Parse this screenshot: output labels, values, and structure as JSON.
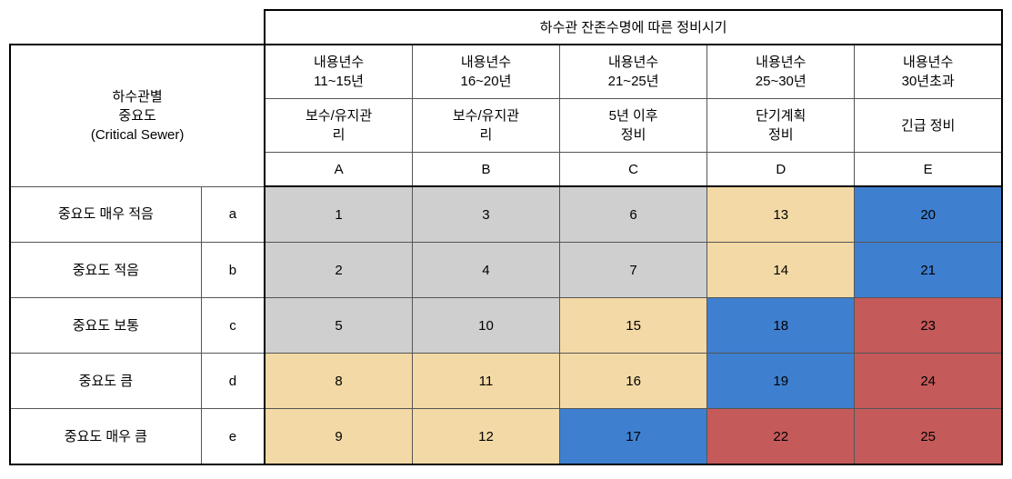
{
  "topHeader": "하수관 잔존수명에 따른 정비시기",
  "rowHeader": {
    "line1": "하수관별",
    "line2": "중요도",
    "line3": "(Critical Sewer)"
  },
  "columns": [
    {
      "range": "내용년수\n11~15년",
      "action": "보수/유지관\n리",
      "code": "A"
    },
    {
      "range": "내용년수\n16~20년",
      "action": "보수/유지관\n리",
      "code": "B"
    },
    {
      "range": "내용년수\n21~25년",
      "action": "5년 이후\n정비",
      "code": "C"
    },
    {
      "range": "내용년수\n25~30년",
      "action": "단기계획\n정비",
      "code": "D"
    },
    {
      "range": "내용년수\n30년초과",
      "action": "긴급 정비",
      "code": "E"
    }
  ],
  "rows": [
    {
      "label": "중요도 매우 적음",
      "code": "a",
      "cells": [
        {
          "v": "1",
          "bg": "#cfcfcf"
        },
        {
          "v": "3",
          "bg": "#cfcfcf"
        },
        {
          "v": "6",
          "bg": "#cfcfcf"
        },
        {
          "v": "13",
          "bg": "#f3d9a5"
        },
        {
          "v": "20",
          "bg": "#3f7fcf"
        }
      ]
    },
    {
      "label": "중요도 적음",
      "code": "b",
      "cells": [
        {
          "v": "2",
          "bg": "#cfcfcf"
        },
        {
          "v": "4",
          "bg": "#cfcfcf"
        },
        {
          "v": "7",
          "bg": "#cfcfcf"
        },
        {
          "v": "14",
          "bg": "#f3d9a5"
        },
        {
          "v": "21",
          "bg": "#3f7fcf"
        }
      ]
    },
    {
      "label": "중요도 보통",
      "code": "c",
      "cells": [
        {
          "v": "5",
          "bg": "#cfcfcf"
        },
        {
          "v": "10",
          "bg": "#cfcfcf"
        },
        {
          "v": "15",
          "bg": "#f3d9a5"
        },
        {
          "v": "18",
          "bg": "#3f7fcf"
        },
        {
          "v": "23",
          "bg": "#c55a5a"
        }
      ]
    },
    {
      "label": "중요도 큼",
      "code": "d",
      "cells": [
        {
          "v": "8",
          "bg": "#f3d9a5"
        },
        {
          "v": "11",
          "bg": "#f3d9a5"
        },
        {
          "v": "16",
          "bg": "#f3d9a5"
        },
        {
          "v": "19",
          "bg": "#3f7fcf"
        },
        {
          "v": "24",
          "bg": "#c55a5a"
        }
      ]
    },
    {
      "label": "중요도 매우 큼",
      "code": "e",
      "cells": [
        {
          "v": "9",
          "bg": "#f3d9a5"
        },
        {
          "v": "12",
          "bg": "#f3d9a5"
        },
        {
          "v": "17",
          "bg": "#3f7fcf"
        },
        {
          "v": "22",
          "bg": "#c55a5a"
        },
        {
          "v": "25",
          "bg": "#c55a5a"
        }
      ]
    }
  ],
  "colors": {
    "grey": "#cfcfcf",
    "tan": "#f3d9a5",
    "blue": "#3f7fcf",
    "red": "#c55a5a",
    "white": "#ffffff"
  }
}
